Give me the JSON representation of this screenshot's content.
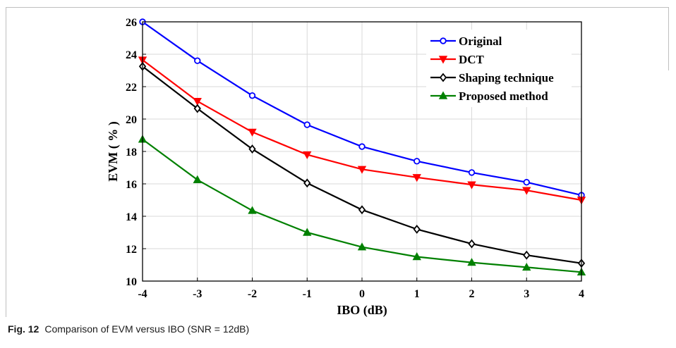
{
  "caption": {
    "label": "Fig. 12",
    "text": "Comparison of EVM versus IBO (SNR = 12dB)"
  },
  "chart_data": {
    "type": "line",
    "title": "",
    "xlabel": "IBO (dB)",
    "ylabel": "EVM ( % )",
    "x": [
      -4,
      -3,
      -2,
      -1,
      0,
      1,
      2,
      3,
      4
    ],
    "xlim": [
      -4,
      4
    ],
    "ylim": [
      10,
      26
    ],
    "xticks": [
      -4,
      -3,
      -2,
      -1,
      0,
      1,
      2,
      3,
      4
    ],
    "yticks": [
      10,
      12,
      14,
      16,
      18,
      20,
      22,
      24,
      26
    ],
    "grid": true,
    "legend_position": "top-right",
    "series": [
      {
        "name": "Original",
        "color": "#0000ff",
        "marker": "circle",
        "values": [
          26.0,
          23.6,
          21.45,
          19.65,
          18.3,
          17.4,
          16.7,
          16.1,
          15.3
        ]
      },
      {
        "name": "DCT",
        "color": "#ff0000",
        "marker": "triangle-down",
        "values": [
          23.65,
          21.1,
          19.2,
          17.8,
          16.9,
          16.4,
          15.95,
          15.6,
          15.0
        ]
      },
      {
        "name": "Shaping technique",
        "color": "#000000",
        "marker": "diamond",
        "values": [
          23.25,
          20.65,
          18.15,
          16.05,
          14.4,
          13.2,
          12.3,
          11.6,
          11.1
        ]
      },
      {
        "name": "Proposed method",
        "color": "#008000",
        "marker": "triangle-up",
        "values": [
          18.75,
          16.25,
          14.35,
          13.0,
          12.1,
          11.5,
          11.15,
          10.85,
          10.55
        ]
      }
    ]
  }
}
